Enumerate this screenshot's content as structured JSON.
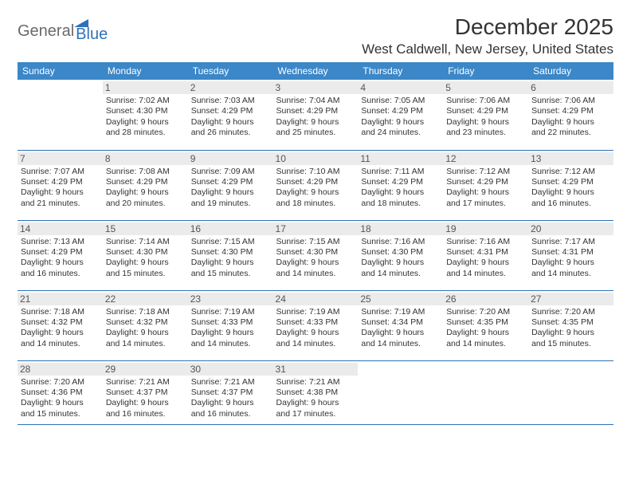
{
  "logo": {
    "text_gray": "General",
    "text_blue": "Blue"
  },
  "title": "December 2025",
  "location": "West Caldwell, New Jersey, United States",
  "colors": {
    "header_bg": "#3b87c8",
    "header_text": "#ffffff",
    "border": "#2f71b8",
    "daynum_bg": "#ebebeb",
    "text": "#333333",
    "logo_gray": "#6a6a6a",
    "logo_blue": "#2f71b8"
  },
  "day_headers": [
    "Sunday",
    "Monday",
    "Tuesday",
    "Wednesday",
    "Thursday",
    "Friday",
    "Saturday"
  ],
  "weeks": [
    [
      {
        "num": "",
        "lines": []
      },
      {
        "num": "1",
        "lines": [
          "Sunrise: 7:02 AM",
          "Sunset: 4:30 PM",
          "Daylight: 9 hours and 28 minutes."
        ]
      },
      {
        "num": "2",
        "lines": [
          "Sunrise: 7:03 AM",
          "Sunset: 4:29 PM",
          "Daylight: 9 hours and 26 minutes."
        ]
      },
      {
        "num": "3",
        "lines": [
          "Sunrise: 7:04 AM",
          "Sunset: 4:29 PM",
          "Daylight: 9 hours and 25 minutes."
        ]
      },
      {
        "num": "4",
        "lines": [
          "Sunrise: 7:05 AM",
          "Sunset: 4:29 PM",
          "Daylight: 9 hours and 24 minutes."
        ]
      },
      {
        "num": "5",
        "lines": [
          "Sunrise: 7:06 AM",
          "Sunset: 4:29 PM",
          "Daylight: 9 hours and 23 minutes."
        ]
      },
      {
        "num": "6",
        "lines": [
          "Sunrise: 7:06 AM",
          "Sunset: 4:29 PM",
          "Daylight: 9 hours and 22 minutes."
        ]
      }
    ],
    [
      {
        "num": "7",
        "lines": [
          "Sunrise: 7:07 AM",
          "Sunset: 4:29 PM",
          "Daylight: 9 hours and 21 minutes."
        ]
      },
      {
        "num": "8",
        "lines": [
          "Sunrise: 7:08 AM",
          "Sunset: 4:29 PM",
          "Daylight: 9 hours and 20 minutes."
        ]
      },
      {
        "num": "9",
        "lines": [
          "Sunrise: 7:09 AM",
          "Sunset: 4:29 PM",
          "Daylight: 9 hours and 19 minutes."
        ]
      },
      {
        "num": "10",
        "lines": [
          "Sunrise: 7:10 AM",
          "Sunset: 4:29 PM",
          "Daylight: 9 hours and 18 minutes."
        ]
      },
      {
        "num": "11",
        "lines": [
          "Sunrise: 7:11 AM",
          "Sunset: 4:29 PM",
          "Daylight: 9 hours and 18 minutes."
        ]
      },
      {
        "num": "12",
        "lines": [
          "Sunrise: 7:12 AM",
          "Sunset: 4:29 PM",
          "Daylight: 9 hours and 17 minutes."
        ]
      },
      {
        "num": "13",
        "lines": [
          "Sunrise: 7:12 AM",
          "Sunset: 4:29 PM",
          "Daylight: 9 hours and 16 minutes."
        ]
      }
    ],
    [
      {
        "num": "14",
        "lines": [
          "Sunrise: 7:13 AM",
          "Sunset: 4:29 PM",
          "Daylight: 9 hours and 16 minutes."
        ]
      },
      {
        "num": "15",
        "lines": [
          "Sunrise: 7:14 AM",
          "Sunset: 4:30 PM",
          "Daylight: 9 hours and 15 minutes."
        ]
      },
      {
        "num": "16",
        "lines": [
          "Sunrise: 7:15 AM",
          "Sunset: 4:30 PM",
          "Daylight: 9 hours and 15 minutes."
        ]
      },
      {
        "num": "17",
        "lines": [
          "Sunrise: 7:15 AM",
          "Sunset: 4:30 PM",
          "Daylight: 9 hours and 14 minutes."
        ]
      },
      {
        "num": "18",
        "lines": [
          "Sunrise: 7:16 AM",
          "Sunset: 4:30 PM",
          "Daylight: 9 hours and 14 minutes."
        ]
      },
      {
        "num": "19",
        "lines": [
          "Sunrise: 7:16 AM",
          "Sunset: 4:31 PM",
          "Daylight: 9 hours and 14 minutes."
        ]
      },
      {
        "num": "20",
        "lines": [
          "Sunrise: 7:17 AM",
          "Sunset: 4:31 PM",
          "Daylight: 9 hours and 14 minutes."
        ]
      }
    ],
    [
      {
        "num": "21",
        "lines": [
          "Sunrise: 7:18 AM",
          "Sunset: 4:32 PM",
          "Daylight: 9 hours and 14 minutes."
        ]
      },
      {
        "num": "22",
        "lines": [
          "Sunrise: 7:18 AM",
          "Sunset: 4:32 PM",
          "Daylight: 9 hours and 14 minutes."
        ]
      },
      {
        "num": "23",
        "lines": [
          "Sunrise: 7:19 AM",
          "Sunset: 4:33 PM",
          "Daylight: 9 hours and 14 minutes."
        ]
      },
      {
        "num": "24",
        "lines": [
          "Sunrise: 7:19 AM",
          "Sunset: 4:33 PM",
          "Daylight: 9 hours and 14 minutes."
        ]
      },
      {
        "num": "25",
        "lines": [
          "Sunrise: 7:19 AM",
          "Sunset: 4:34 PM",
          "Daylight: 9 hours and 14 minutes."
        ]
      },
      {
        "num": "26",
        "lines": [
          "Sunrise: 7:20 AM",
          "Sunset: 4:35 PM",
          "Daylight: 9 hours and 14 minutes."
        ]
      },
      {
        "num": "27",
        "lines": [
          "Sunrise: 7:20 AM",
          "Sunset: 4:35 PM",
          "Daylight: 9 hours and 15 minutes."
        ]
      }
    ],
    [
      {
        "num": "28",
        "lines": [
          "Sunrise: 7:20 AM",
          "Sunset: 4:36 PM",
          "Daylight: 9 hours and 15 minutes."
        ]
      },
      {
        "num": "29",
        "lines": [
          "Sunrise: 7:21 AM",
          "Sunset: 4:37 PM",
          "Daylight: 9 hours and 16 minutes."
        ]
      },
      {
        "num": "30",
        "lines": [
          "Sunrise: 7:21 AM",
          "Sunset: 4:37 PM",
          "Daylight: 9 hours and 16 minutes."
        ]
      },
      {
        "num": "31",
        "lines": [
          "Sunrise: 7:21 AM",
          "Sunset: 4:38 PM",
          "Daylight: 9 hours and 17 minutes."
        ]
      },
      {
        "num": "",
        "lines": []
      },
      {
        "num": "",
        "lines": []
      },
      {
        "num": "",
        "lines": []
      }
    ]
  ]
}
